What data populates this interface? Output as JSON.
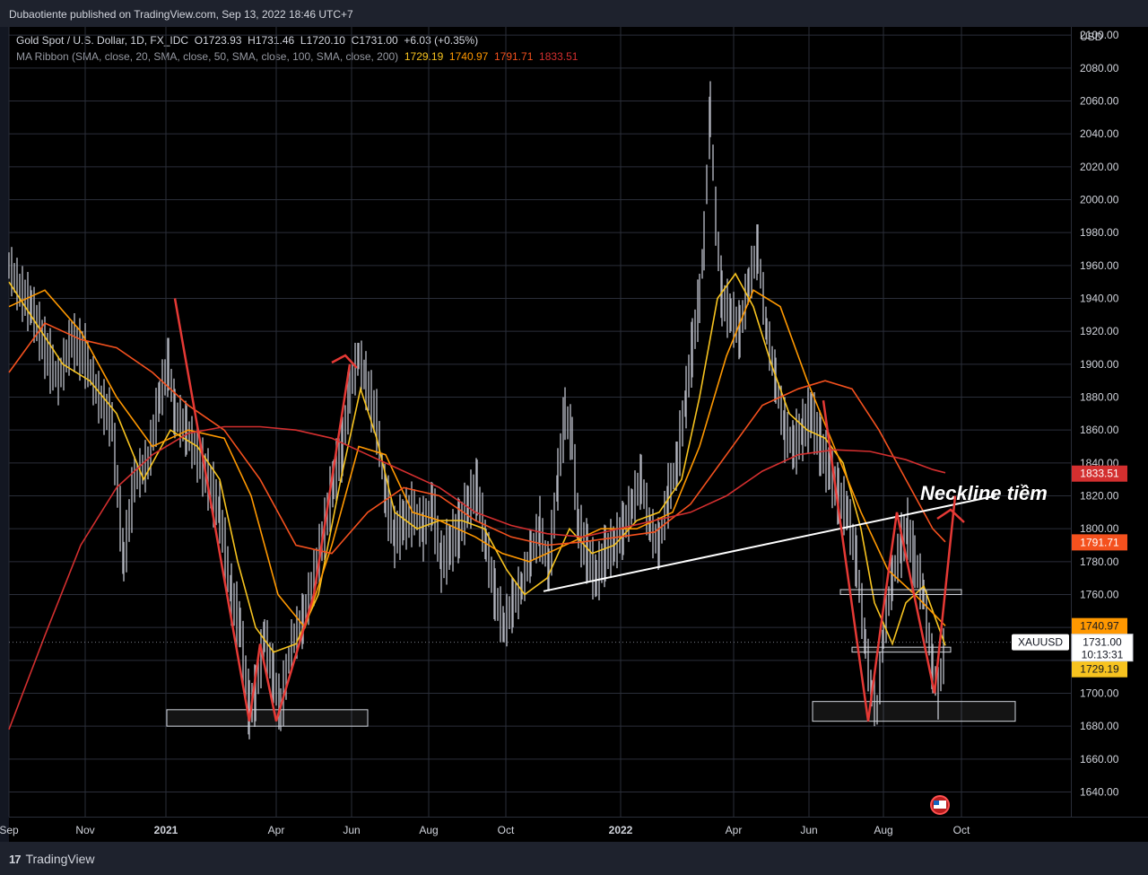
{
  "publisher": "Dubaotiente published on TradingView.com, Sep 13, 2022 18:46 UTC+7",
  "legend": {
    "symbol_line": "Gold Spot / U.S. Dollar, 1D, FX_IDC",
    "open_label": "O",
    "open": "1723.93",
    "high_label": "H",
    "high": "1731.46",
    "low_label": "L",
    "low": "1720.10",
    "close_label": "C",
    "close": "1731.00",
    "change": "+6.03 (+0.35%)",
    "ma_label": "MA Ribbon (SMA, close, 20, SMA, close, 50, SMA, close, 100, SMA, close, 200)",
    "ma_values": [
      "1729.19",
      "1740.97",
      "1791.71",
      "1833.51"
    ]
  },
  "currency": "USD",
  "footer_brand": "TradingView",
  "annotation": "Neckline tiềm",
  "colors": {
    "ma20": "#f7c31f",
    "ma50": "#ff9800",
    "ma100": "#f4511e",
    "ma200": "#d32f2f",
    "neckline": "#ffffff",
    "pattern": "#e53935",
    "candles": "#b2b5be",
    "price_badge_bg": "#ffffff"
  },
  "chart_data": {
    "type": "line",
    "title": "Gold Spot / U.S. Dollar, 1D, FX_IDC",
    "ylabel": "USD",
    "ylim": [
      1625,
      2105
    ],
    "yticks": [
      1640,
      1660,
      1680,
      1700,
      1720,
      1740,
      1760,
      1780,
      1800,
      1820,
      1840,
      1860,
      1880,
      1900,
      1920,
      1940,
      1960,
      1980,
      2000,
      2020,
      2040,
      2060,
      2080,
      2100
    ],
    "ytick_labels": [
      "1640.00",
      "1660.00",
      "1680.00",
      "1700.00",
      "1720.00",
      "1740.00",
      "1760.00",
      "1780.00",
      "1800.00",
      "1820.00",
      "1840.00",
      "1860.00",
      "1880.00",
      "1900.00",
      "1920.00",
      "1940.00",
      "1960.00",
      "1980.00",
      "2000.00",
      "2020.00",
      "2040.00",
      "2060.00",
      "2080.00",
      "2100.00"
    ],
    "xtick_labels": [
      "Sep",
      "Nov",
      "2021",
      "Apr",
      "Jun",
      "Aug",
      "Oct",
      "2022",
      "Apr",
      "Jun",
      "Aug",
      "Oct"
    ],
    "xtick_bold": [
      false,
      false,
      true,
      false,
      false,
      false,
      false,
      true,
      false,
      false,
      false,
      false
    ],
    "xtick_t": [
      0,
      85,
      175,
      298,
      382,
      468,
      554,
      682,
      808,
      892,
      975,
      1062
    ],
    "last_price": {
      "symbol": "XAUUSD",
      "price": "1731.00",
      "countdown": "10:13:31",
      "value": 1731.0
    },
    "price_badges": [
      {
        "name": "MA200",
        "label": "1833.51",
        "value": 1833.51
      },
      {
        "name": "MA100",
        "label": "1791.71",
        "value": 1791.71
      },
      {
        "name": "MA50",
        "label": "1740.97",
        "value": 1740.97
      },
      {
        "name": "MA20",
        "label": "1729.19",
        "value": 1729.19
      }
    ],
    "price_points": [
      [
        0,
        1960
      ],
      [
        12,
        1945
      ],
      [
        25,
        1935
      ],
      [
        40,
        1910
      ],
      [
        55,
        1890
      ],
      [
        70,
        1915
      ],
      [
        85,
        1905
      ],
      [
        100,
        1880
      ],
      [
        115,
        1865
      ],
      [
        128,
        1780
      ],
      [
        140,
        1830
      ],
      [
        155,
        1840
      ],
      [
        168,
        1880
      ],
      [
        178,
        1900
      ],
      [
        185,
        1870
      ],
      [
        198,
        1860
      ],
      [
        210,
        1845
      ],
      [
        222,
        1830
      ],
      [
        235,
        1810
      ],
      [
        248,
        1760
      ],
      [
        258,
        1740
      ],
      [
        268,
        1690
      ],
      [
        275,
        1700
      ],
      [
        285,
        1735
      ],
      [
        295,
        1710
      ],
      [
        303,
        1690
      ],
      [
        315,
        1730
      ],
      [
        328,
        1745
      ],
      [
        340,
        1770
      ],
      [
        352,
        1800
      ],
      [
        362,
        1830
      ],
      [
        372,
        1850
      ],
      [
        380,
        1885
      ],
      [
        390,
        1905
      ],
      [
        398,
        1890
      ],
      [
        410,
        1865
      ],
      [
        420,
        1820
      ],
      [
        430,
        1795
      ],
      [
        440,
        1805
      ],
      [
        452,
        1810
      ],
      [
        462,
        1800
      ],
      [
        472,
        1815
      ],
      [
        482,
        1780
      ],
      [
        492,
        1790
      ],
      [
        502,
        1800
      ],
      [
        512,
        1815
      ],
      [
        522,
        1825
      ],
      [
        532,
        1790
      ],
      [
        542,
        1760
      ],
      [
        552,
        1740
      ],
      [
        562,
        1755
      ],
      [
        572,
        1765
      ],
      [
        582,
        1785
      ],
      [
        592,
        1800
      ],
      [
        602,
        1775
      ],
      [
        612,
        1830
      ],
      [
        620,
        1870
      ],
      [
        628,
        1855
      ],
      [
        635,
        1800
      ],
      [
        645,
        1785
      ],
      [
        655,
        1770
      ],
      [
        665,
        1785
      ],
      [
        675,
        1790
      ],
      [
        685,
        1800
      ],
      [
        695,
        1815
      ],
      [
        705,
        1830
      ],
      [
        715,
        1800
      ],
      [
        725,
        1790
      ],
      [
        735,
        1820
      ],
      [
        745,
        1840
      ],
      [
        755,
        1880
      ],
      [
        762,
        1910
      ],
      [
        770,
        1940
      ],
      [
        775,
        1975
      ],
      [
        782,
        2055
      ],
      [
        788,
        1990
      ],
      [
        795,
        1940
      ],
      [
        805,
        1930
      ],
      [
        815,
        1920
      ],
      [
        825,
        1950
      ],
      [
        835,
        1970
      ],
      [
        845,
        1920
      ],
      [
        855,
        1890
      ],
      [
        865,
        1860
      ],
      [
        875,
        1850
      ],
      [
        885,
        1860
      ],
      [
        895,
        1870
      ],
      [
        905,
        1850
      ],
      [
        915,
        1835
      ],
      [
        925,
        1820
      ],
      [
        935,
        1810
      ],
      [
        945,
        1780
      ],
      [
        955,
        1730
      ],
      [
        962,
        1700
      ],
      [
        968,
        1690
      ],
      [
        975,
        1735
      ],
      [
        985,
        1770
      ],
      [
        995,
        1790
      ],
      [
        1002,
        1800
      ],
      [
        1010,
        1780
      ],
      [
        1020,
        1760
      ],
      [
        1030,
        1715
      ],
      [
        1036,
        1700
      ],
      [
        1044,
        1730
      ]
    ],
    "series": [
      {
        "name": "MA20",
        "values": [
          [
            0,
            1950
          ],
          [
            30,
            1925
          ],
          [
            60,
            1900
          ],
          [
            90,
            1890
          ],
          [
            120,
            1870
          ],
          [
            150,
            1830
          ],
          [
            180,
            1860
          ],
          [
            210,
            1850
          ],
          [
            235,
            1830
          ],
          [
            255,
            1780
          ],
          [
            275,
            1740
          ],
          [
            295,
            1725
          ],
          [
            320,
            1730
          ],
          [
            345,
            1760
          ],
          [
            370,
            1830
          ],
          [
            392,
            1885
          ],
          [
            410,
            1855
          ],
          [
            430,
            1810
          ],
          [
            455,
            1800
          ],
          [
            480,
            1805
          ],
          [
            505,
            1805
          ],
          [
            530,
            1800
          ],
          [
            555,
            1775
          ],
          [
            575,
            1760
          ],
          [
            600,
            1770
          ],
          [
            625,
            1800
          ],
          [
            650,
            1785
          ],
          [
            675,
            1790
          ],
          [
            700,
            1805
          ],
          [
            725,
            1810
          ],
          [
            750,
            1830
          ],
          [
            770,
            1880
          ],
          [
            790,
            1940
          ],
          [
            810,
            1955
          ],
          [
            830,
            1935
          ],
          [
            850,
            1900
          ],
          [
            870,
            1870
          ],
          [
            890,
            1860
          ],
          [
            910,
            1855
          ],
          [
            930,
            1840
          ],
          [
            950,
            1800
          ],
          [
            965,
            1755
          ],
          [
            985,
            1730
          ],
          [
            1000,
            1755
          ],
          [
            1020,
            1765
          ],
          [
            1044,
            1729
          ]
        ]
      },
      {
        "name": "MA50",
        "values": [
          [
            0,
            1935
          ],
          [
            40,
            1945
          ],
          [
            80,
            1920
          ],
          [
            120,
            1880
          ],
          [
            160,
            1850
          ],
          [
            200,
            1860
          ],
          [
            240,
            1855
          ],
          [
            270,
            1820
          ],
          [
            300,
            1760
          ],
          [
            330,
            1740
          ],
          [
            360,
            1790
          ],
          [
            390,
            1850
          ],
          [
            420,
            1845
          ],
          [
            450,
            1810
          ],
          [
            480,
            1805
          ],
          [
            520,
            1795
          ],
          [
            550,
            1785
          ],
          [
            580,
            1780
          ],
          [
            620,
            1790
          ],
          [
            660,
            1800
          ],
          [
            700,
            1800
          ],
          [
            740,
            1810
          ],
          [
            770,
            1850
          ],
          [
            800,
            1905
          ],
          [
            830,
            1945
          ],
          [
            860,
            1935
          ],
          [
            890,
            1890
          ],
          [
            920,
            1850
          ],
          [
            950,
            1810
          ],
          [
            980,
            1775
          ],
          [
            1010,
            1760
          ],
          [
            1044,
            1741
          ]
        ]
      },
      {
        "name": "MA100",
        "values": [
          [
            0,
            1895
          ],
          [
            40,
            1925
          ],
          [
            80,
            1915
          ],
          [
            120,
            1910
          ],
          [
            160,
            1895
          ],
          [
            200,
            1875
          ],
          [
            240,
            1860
          ],
          [
            280,
            1830
          ],
          [
            320,
            1790
          ],
          [
            360,
            1785
          ],
          [
            400,
            1810
          ],
          [
            440,
            1825
          ],
          [
            480,
            1820
          ],
          [
            520,
            1805
          ],
          [
            560,
            1795
          ],
          [
            600,
            1790
          ],
          [
            640,
            1792
          ],
          [
            680,
            1795
          ],
          [
            720,
            1798
          ],
          [
            760,
            1815
          ],
          [
            800,
            1845
          ],
          [
            840,
            1875
          ],
          [
            880,
            1885
          ],
          [
            910,
            1890
          ],
          [
            940,
            1885
          ],
          [
            970,
            1860
          ],
          [
            1000,
            1830
          ],
          [
            1030,
            1800
          ],
          [
            1044,
            1792
          ]
        ]
      },
      {
        "name": "MA200",
        "values": [
          [
            0,
            1678
          ],
          [
            40,
            1735
          ],
          [
            80,
            1790
          ],
          [
            120,
            1825
          ],
          [
            160,
            1845
          ],
          [
            200,
            1858
          ],
          [
            240,
            1862
          ],
          [
            280,
            1862
          ],
          [
            320,
            1860
          ],
          [
            360,
            1855
          ],
          [
            400,
            1845
          ],
          [
            440,
            1835
          ],
          [
            480,
            1825
          ],
          [
            520,
            1810
          ],
          [
            560,
            1802
          ],
          [
            600,
            1797
          ],
          [
            640,
            1795
          ],
          [
            680,
            1800
          ],
          [
            720,
            1805
          ],
          [
            760,
            1810
          ],
          [
            800,
            1820
          ],
          [
            840,
            1835
          ],
          [
            880,
            1845
          ],
          [
            920,
            1848
          ],
          [
            960,
            1847
          ],
          [
            1000,
            1842
          ],
          [
            1030,
            1836
          ],
          [
            1044,
            1834
          ]
        ]
      }
    ],
    "annotations": [
      {
        "name": "neckline",
        "from": [
          596,
          1762
        ],
        "to": [
          1100,
          1820
        ]
      },
      {
        "name": "pattern-lines",
        "points": [
          [
            185,
            1940
          ],
          [
            268,
            1683
          ],
          [
            280,
            1730
          ],
          [
            298,
            1683
          ],
          [
            340,
            1760
          ],
          [
            380,
            1900
          ]
        ]
      },
      {
        "name": "pattern-lines-right",
        "points": [
          [
            908,
            1878
          ],
          [
            958,
            1683
          ],
          [
            972,
            1740
          ],
          [
            990,
            1810
          ],
          [
            1032,
            1700
          ],
          [
            1055,
            1820
          ]
        ]
      },
      {
        "name": "support-left",
        "x": [
          176,
          400
        ],
        "y": [
          1680,
          1690
        ]
      },
      {
        "name": "support-right",
        "x": [
          896,
          1122
        ],
        "y": [
          1683,
          1695
        ]
      },
      {
        "name": "resistance-right",
        "x": [
          927,
          1062
        ],
        "y": [
          1760,
          1763
        ]
      },
      {
        "name": "mid-box-right",
        "x": [
          940,
          1050
        ],
        "y": [
          1725,
          1728
        ]
      }
    ]
  }
}
